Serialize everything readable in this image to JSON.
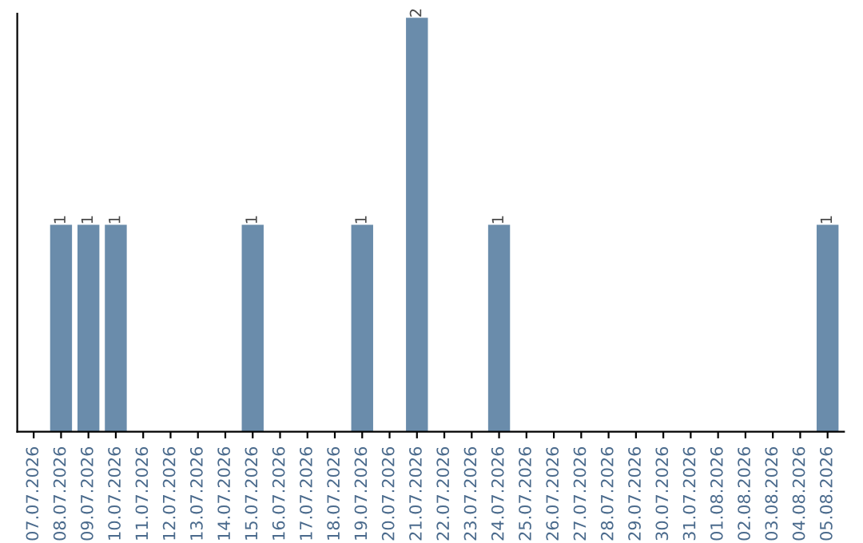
{
  "chart_data": {
    "type": "bar",
    "categories": [
      "07.07.2026",
      "08.07.2026",
      "09.07.2026",
      "10.07.2026",
      "11.07.2026",
      "12.07.2026",
      "13.07.2026",
      "14.07.2026",
      "15.07.2026",
      "16.07.2026",
      "17.07.2026",
      "18.07.2026",
      "19.07.2026",
      "20.07.2026",
      "21.07.2026",
      "22.07.2026",
      "23.07.2026",
      "24.07.2026",
      "25.07.2026",
      "26.07.2026",
      "27.07.2026",
      "28.07.2026",
      "29.07.2026",
      "30.07.2026",
      "31.07.2026",
      "01.08.2026",
      "02.08.2026",
      "03.08.2026",
      "04.08.2026",
      "05.08.2026"
    ],
    "values": [
      0,
      1,
      1,
      1,
      0,
      0,
      0,
      0,
      1,
      0,
      0,
      0,
      1,
      0,
      2,
      0,
      0,
      1,
      0,
      0,
      0,
      0,
      0,
      0,
      0,
      0,
      0,
      0,
      0,
      1
    ],
    "value_labels": [
      null,
      "1",
      "1",
      "1",
      null,
      null,
      null,
      null,
      "1",
      null,
      null,
      null,
      "1",
      null,
      "2",
      null,
      null,
      "1",
      null,
      null,
      null,
      null,
      null,
      null,
      null,
      null,
      null,
      null,
      null,
      "1"
    ],
    "color": "#6a8cab",
    "tick_labels": "x",
    "grid": false,
    "legend": false
  }
}
